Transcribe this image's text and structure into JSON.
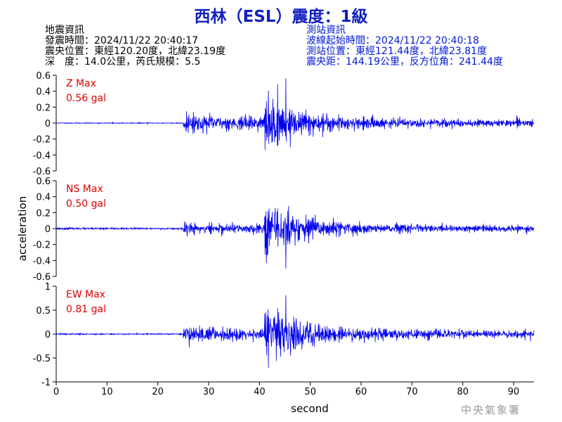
{
  "title": "西林（ESL）震度：1級",
  "earthquake_info": {
    "heading": "地震資訊",
    "origin_time": "發震時間：2024/11/22 20:40:17",
    "epicenter": "震央位置：東經120.20度，北緯23.19度",
    "depth_magnitude": "深　度：14.0公里，芮氏規模：5.5"
  },
  "station_info": {
    "heading": "測站資訊",
    "wave_start": "波線起始時間：2024/11/22 20:40:18",
    "station_location": "測站位置：東經121.44度，北緯23.81度",
    "distance_azimuth": "震央距：144.19公里，反方位角：241.44度"
  },
  "agency": "中央氣象署",
  "chart_data": {
    "type": "line",
    "xlabel": "second",
    "ylabel": "acceleration",
    "xlim": [
      0,
      94
    ],
    "x_ticks": [
      "0",
      "10",
      "20",
      "30",
      "40",
      "50",
      "60",
      "70",
      "80",
      "90"
    ],
    "line_color": "#0000ee",
    "label_color": "#e00000",
    "panels": [
      {
        "component": "Z",
        "label": "Z Max",
        "max_text": "0.56 gal",
        "peak": 0.56,
        "ylim": [
          -0.6,
          0.6
        ],
        "y_ticks": [
          "0.6",
          "0.4",
          "0.2",
          "0",
          "-0.2",
          "-0.4",
          "-0.6"
        ],
        "noise": 0.004,
        "p_amp": 0.1,
        "s_amp": 0.22,
        "coda_amp": 0.03,
        "seed": 11
      },
      {
        "component": "NS",
        "label": "NS Max",
        "max_text": "0.50 gal",
        "peak": 0.5,
        "ylim": [
          -0.6,
          0.6
        ],
        "y_ticks": [
          "0.6",
          "0.4",
          "0.2",
          "0",
          "-0.2",
          "-0.4",
          "-0.6"
        ],
        "noise": 0.01,
        "p_amp": 0.08,
        "s_amp": 0.25,
        "coda_amp": 0.035,
        "seed": 23
      },
      {
        "component": "EW",
        "label": "EW Max",
        "max_text": "0.81 gal",
        "peak": 0.81,
        "ylim": [
          -1,
          1
        ],
        "y_ticks": [
          "1",
          "0.5",
          "0",
          "-0.5",
          "-1"
        ],
        "noise": 0.008,
        "p_amp": 0.12,
        "s_amp": 0.3,
        "coda_amp": 0.05,
        "seed": 37
      }
    ],
    "p_arrival": 25,
    "s_arrival": 41,
    "peak_time": 45.2
  }
}
